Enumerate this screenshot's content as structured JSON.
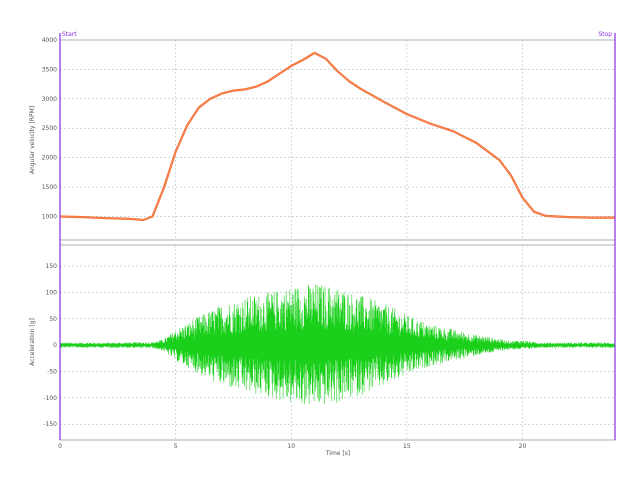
{
  "markers": {
    "start": "Start",
    "stop": "Stop",
    "color": "#8a2be2"
  },
  "chart_data": [
    {
      "type": "line",
      "ylabel": "Angular velocity [RPM]",
      "xlim": [
        0,
        24
      ],
      "ylim": [
        600,
        4000
      ],
      "yticks": [
        "4000",
        "3500",
        "3000",
        "2500",
        "2000",
        "1500",
        "1000"
      ],
      "ytick_values": [
        4000,
        3500,
        3000,
        2500,
        2000,
        1500,
        1000
      ],
      "xgrid": [
        5,
        10,
        15,
        20
      ],
      "color": "#f26a30",
      "series": [
        {
          "x": [
            0,
            1,
            2,
            3,
            3.6,
            4.0,
            4.5,
            5.0,
            5.5,
            6.0,
            6.5,
            7.0,
            7.5,
            8.0,
            8.5,
            9.0,
            9.5,
            10.0,
            10.5,
            11.0,
            11.5,
            12.0,
            12.5,
            13.0,
            14.0,
            15.0,
            16.0,
            17.0,
            18.0,
            19.0,
            19.5,
            20.0,
            20.5,
            21.0,
            22.0,
            23.0,
            24.0
          ],
          "y": [
            1000,
            990,
            970,
            960,
            940,
            1000,
            1500,
            2100,
            2550,
            2850,
            3000,
            3090,
            3140,
            3160,
            3210,
            3300,
            3430,
            3560,
            3660,
            3780,
            3680,
            3470,
            3300,
            3170,
            2950,
            2740,
            2580,
            2450,
            2250,
            1960,
            1700,
            1320,
            1080,
            1010,
            990,
            980,
            980
          ]
        }
      ]
    },
    {
      "type": "line",
      "ylabel": "Acceleration [g]",
      "xlabel": "Time [s]",
      "xlim": [
        0,
        24
      ],
      "ylim": [
        -180,
        190
      ],
      "yticks": [
        "150",
        "100",
        "50",
        "0",
        "-50",
        "-100",
        "-150"
      ],
      "ytick_values": [
        150,
        100,
        50,
        0,
        -50,
        -100,
        -150
      ],
      "xticks": [
        "0",
        "5",
        "10",
        "15",
        "20"
      ],
      "xtick_values": [
        0,
        5,
        10,
        15,
        20
      ],
      "color": "#1bd01b",
      "envelope": {
        "x": [
          0,
          2,
          4.0,
          4.5,
          5.0,
          6.0,
          7.0,
          8.0,
          9.0,
          10.0,
          11.0,
          12.0,
          13.0,
          14.0,
          15.0,
          16.0,
          17.0,
          18.0,
          19.0,
          19.5,
          20.0,
          20.5,
          21.0,
          24.0
        ],
        "amplitude": [
          5,
          5,
          6,
          12,
          30,
          55,
          78,
          92,
          100,
          112,
          118,
          112,
          95,
          80,
          58,
          40,
          30,
          20,
          12,
          8,
          10,
          6,
          5,
          5
        ]
      }
    }
  ]
}
